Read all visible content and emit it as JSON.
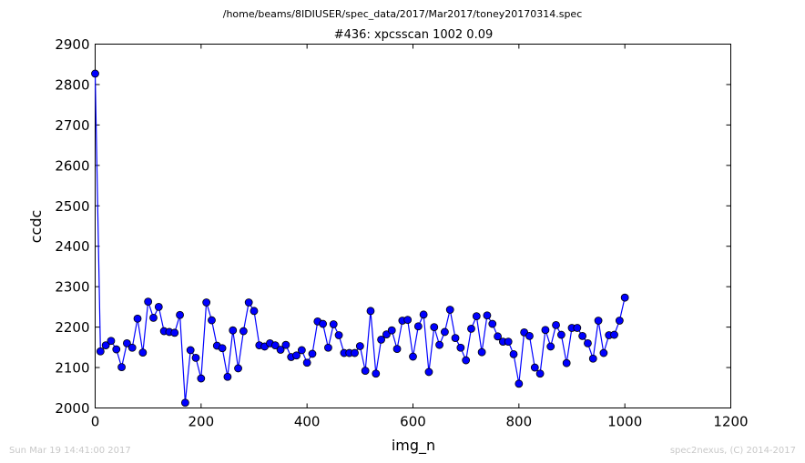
{
  "footer": {
    "left": "Sun Mar 19 14:41:00 2017",
    "right": "spec2nexus, (C) 2014-2017"
  },
  "chart_data": {
    "type": "line",
    "suptitle": "/home/beams/8IDIUSER/spec_data/2017/Mar2017/toney20170314.spec",
    "title": "#436: xpcsscan 1002 0.09",
    "xlabel": "img_n",
    "ylabel": "ccdc",
    "xlim": [
      0,
      1200
    ],
    "ylim": [
      2000,
      2900
    ],
    "xticks": [
      0,
      200,
      400,
      600,
      800,
      1000,
      1200
    ],
    "yticks": [
      2000,
      2100,
      2200,
      2300,
      2400,
      2500,
      2600,
      2700,
      2800,
      2900
    ],
    "grid": false,
    "colors": {
      "line": "#0000ff",
      "marker_edge": "#000000",
      "marker_fill": "#0000ff"
    },
    "marker": "circle",
    "series": [
      {
        "x": [
          0,
          10,
          20,
          30,
          40,
          50,
          60,
          70,
          80,
          90,
          100,
          110,
          120,
          130,
          140,
          150,
          160,
          170,
          180,
          190,
          200,
          210,
          220,
          230,
          240,
          250,
          260,
          270,
          280,
          290,
          300,
          310,
          320,
          330,
          340,
          350,
          360,
          370,
          380,
          390,
          400,
          410,
          420,
          430,
          440,
          450,
          460,
          470,
          480,
          490,
          500,
          510,
          520,
          530,
          540,
          550,
          560,
          570,
          580,
          590,
          600,
          610,
          620,
          630,
          640,
          650,
          660,
          670,
          680,
          690,
          700,
          710,
          720,
          730,
          740,
          750,
          760,
          770,
          780,
          790,
          800,
          810,
          820,
          830,
          840,
          850,
          860,
          870,
          880,
          890,
          900,
          910,
          920,
          930,
          940,
          950,
          960,
          970,
          980,
          990,
          1000
        ],
        "y": [
          2827,
          2140,
          2155,
          2166,
          2145,
          2101,
          2160,
          2149,
          2221,
          2137,
          2263,
          2223,
          2250,
          2190,
          2188,
          2186,
          2230,
          2013,
          2143,
          2124,
          2073,
          2261,
          2217,
          2154,
          2148,
          2077,
          2192,
          2098,
          2190,
          2261,
          2240,
          2155,
          2152,
          2160,
          2155,
          2144,
          2156,
          2126,
          2130,
          2143,
          2112,
          2134,
          2214,
          2208,
          2149,
          2207,
          2180,
          2136,
          2136,
          2136,
          2153,
          2092,
          2240,
          2085,
          2169,
          2182,
          2192,
          2146,
          2216,
          2218,
          2127,
          2202,
          2231,
          2089,
          2200,
          2156,
          2188,
          2243,
          2173,
          2149,
          2118,
          2196,
          2227,
          2138,
          2229,
          2208,
          2177,
          2164,
          2164,
          2133,
          2060,
          2187,
          2178,
          2100,
          2085,
          2193,
          2152,
          2205,
          2181,
          2111,
          2198,
          2198,
          2178,
          2160,
          2122,
          2216,
          2136,
          2180,
          2181,
          2216,
          2273
        ]
      }
    ]
  }
}
